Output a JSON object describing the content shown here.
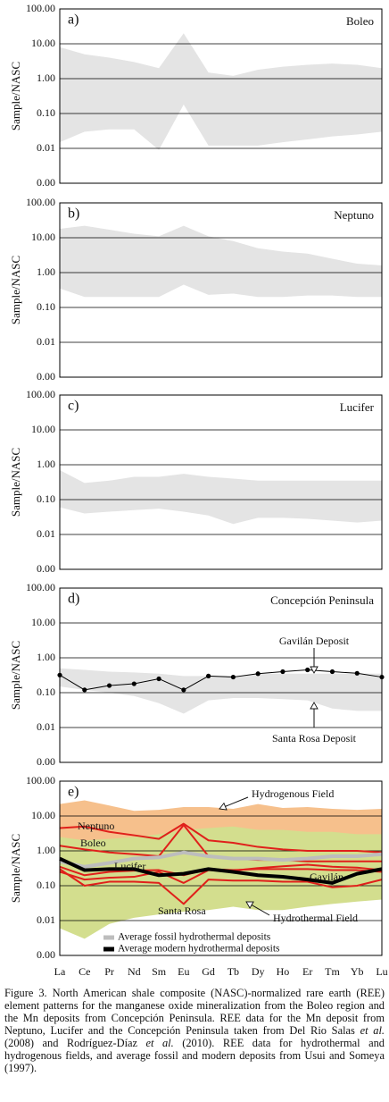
{
  "chart_data": [
    {
      "type": "range",
      "panel": "a)",
      "title": "Boleo",
      "ylabel": "Sample/NASC",
      "log_scale": true,
      "grid": true,
      "ylim": [
        0.001,
        100
      ],
      "yticks": [
        {
          "value": 0.001,
          "label": "0.00"
        },
        {
          "value": 0.01,
          "label": "0.01"
        },
        {
          "value": 0.1,
          "label": "0.10"
        },
        {
          "value": 1,
          "label": "1.00"
        },
        {
          "value": 10,
          "label": "10.00"
        },
        {
          "value": 100,
          "label": "100.00"
        }
      ],
      "bands": [
        {
          "color": "#e4e4e4",
          "upper": [
            8,
            5,
            4,
            3,
            2,
            20,
            1.5,
            1.2,
            1.8,
            2.2,
            2.5,
            2.7,
            2.5,
            2
          ],
          "lower": [
            0.015,
            0.03,
            0.035,
            0.035,
            0.009,
            0.18,
            0.012,
            0.012,
            0.012,
            0.015,
            0.018,
            0.022,
            0.025,
            0.03
          ]
        }
      ],
      "series": []
    },
    {
      "type": "range",
      "panel": "b)",
      "title": "Neptuno",
      "ylabel": "Sample/NASC",
      "log_scale": true,
      "grid": true,
      "ylim": [
        0.001,
        100
      ],
      "yticks": [
        {
          "value": 0.001,
          "label": "0.00"
        },
        {
          "value": 0.01,
          "label": "0.01"
        },
        {
          "value": 0.1,
          "label": "0.10"
        },
        {
          "value": 1,
          "label": "1.00"
        },
        {
          "value": 10,
          "label": "10.00"
        },
        {
          "value": 100,
          "label": "100.00"
        }
      ],
      "bands": [
        {
          "color": "#e4e4e4",
          "upper": [
            18,
            22,
            17,
            13,
            11,
            22,
            11,
            8,
            5,
            4,
            3.5,
            2.5,
            1.8,
            1.6
          ],
          "lower": [
            0.35,
            0.2,
            0.2,
            0.2,
            0.2,
            0.45,
            0.23,
            0.25,
            0.2,
            0.2,
            0.22,
            0.22,
            0.2,
            0.2
          ]
        }
      ],
      "series": []
    },
    {
      "type": "range",
      "panel": "c)",
      "title": "Lucifer",
      "ylabel": "Sample/NASC",
      "log_scale": true,
      "grid": true,
      "ylim": [
        0.001,
        100
      ],
      "yticks": [
        {
          "value": 0.001,
          "label": "0.00"
        },
        {
          "value": 0.01,
          "label": "0.01"
        },
        {
          "value": 0.1,
          "label": "0.10"
        },
        {
          "value": 1,
          "label": "1.00"
        },
        {
          "value": 10,
          "label": "10.00"
        },
        {
          "value": 100,
          "label": "100.00"
        }
      ],
      "bands": [
        {
          "color": "#e4e4e4",
          "upper": [
            0.7,
            0.3,
            0.35,
            0.45,
            0.45,
            0.55,
            0.45,
            0.4,
            0.35,
            0.35,
            0.35,
            0.35,
            0.35,
            0.35
          ],
          "lower": [
            0.06,
            0.04,
            0.045,
            0.05,
            0.055,
            0.045,
            0.035,
            0.02,
            0.03,
            0.03,
            0.028,
            0.025,
            0.022,
            0.025
          ]
        }
      ],
      "series": []
    },
    {
      "type": "range",
      "panel": "d)",
      "title": "Concepción Peninsula",
      "ylabel": "Sample/NASC",
      "log_scale": true,
      "grid": true,
      "ylim": [
        0.001,
        100
      ],
      "yticks": [
        {
          "value": 0.001,
          "label": "0.00"
        },
        {
          "value": 0.01,
          "label": "0.01"
        },
        {
          "value": 0.1,
          "label": "0.10"
        },
        {
          "value": 1,
          "label": "1.00"
        },
        {
          "value": 10,
          "label": "10.00"
        },
        {
          "value": 100,
          "label": "100.00"
        }
      ],
      "bands": [
        {
          "name": "Santa Rosa Deposit",
          "color": "#e4e4e4",
          "upper": [
            0.5,
            0.45,
            0.4,
            0.38,
            0.35,
            0.3,
            0.3,
            0.3,
            0.35,
            0.35,
            0.35,
            0.35,
            0.35,
            0.35
          ],
          "lower": [
            0.15,
            0.12,
            0.1,
            0.08,
            0.05,
            0.025,
            0.06,
            0.07,
            0.07,
            0.065,
            0.06,
            0.035,
            0.03,
            0.03
          ]
        }
      ],
      "series": [
        {
          "name": "Gavilán Deposit",
          "color": "#000000",
          "markers": true,
          "values": [
            0.32,
            0.12,
            0.16,
            0.18,
            0.25,
            0.12,
            0.3,
            0.28,
            0.35,
            0.4,
            0.45,
            0.4,
            0.36,
            0.28
          ]
        }
      ]
    },
    {
      "type": "range",
      "panel": "e)",
      "ylabel": "Sample/NASC",
      "log_scale": true,
      "grid": true,
      "ylim": [
        0.001,
        100
      ],
      "yticks": [
        {
          "value": 0.001,
          "label": "0.00"
        },
        {
          "value": 0.01,
          "label": "0.01"
        },
        {
          "value": 0.1,
          "label": "0.10"
        },
        {
          "value": 1,
          "label": "1.00"
        },
        {
          "value": 10,
          "label": "10.00"
        },
        {
          "value": 100,
          "label": "100.00"
        }
      ],
      "categories": [
        "La",
        "Ce",
        "Pr",
        "Nd",
        "Sm",
        "Eu",
        "Gd",
        "Tb",
        "Dy",
        "Ho",
        "Er",
        "Tm",
        "Yb",
        "Lu"
      ],
      "bands": [
        {
          "name": "Hydrogenous Field",
          "color": "#f6c08c",
          "upper": [
            22,
            28,
            20,
            14,
            15,
            18,
            18,
            16,
            22,
            17,
            18,
            16,
            15,
            16
          ],
          "lower": [
            1,
            0.9,
            0.9,
            0.9,
            0.9,
            1,
            0.9,
            0.9,
            0.9,
            0.9,
            0.9,
            0.9,
            0.9,
            0.9
          ]
        },
        {
          "name": "Hydrothermal Field",
          "color": "#d3de8e",
          "upper": [
            2.5,
            2,
            2.2,
            2.5,
            3,
            4,
            4.5,
            5,
            4,
            4,
            3.5,
            3.5,
            3,
            3
          ],
          "lower": [
            0.006,
            0.003,
            0.008,
            0.012,
            0.015,
            0.018,
            0.02,
            0.025,
            0.02,
            0.02,
            0.025,
            0.03,
            0.035,
            0.04
          ]
        }
      ],
      "series": [
        {
          "name": "Neptuno",
          "color": "#e0201b",
          "values": [
            4.5,
            5,
            3.5,
            2.8,
            2.2,
            6,
            2,
            1.7,
            1.3,
            1.1,
            1,
            1,
            1,
            0.9
          ]
        },
        {
          "name": "Boleo",
          "color": "#e0201b",
          "values": [
            1.4,
            1.1,
            0.9,
            0.8,
            0.7,
            5.5,
            0.7,
            0.6,
            0.55,
            0.55,
            0.5,
            0.5,
            0.5,
            0.5
          ]
        },
        {
          "name": "Lucifer",
          "color": "#e0201b",
          "values": [
            0.35,
            0.2,
            0.25,
            0.27,
            0.28,
            0.2,
            0.3,
            0.28,
            0.3,
            0.3,
            0.3,
            0.28,
            0.28,
            0.25
          ]
        },
        {
          "name": "Santa Rosa",
          "color": "#e0201b",
          "values": [
            0.3,
            0.1,
            0.13,
            0.13,
            0.12,
            0.03,
            0.15,
            0.14,
            0.14,
            0.13,
            0.13,
            0.09,
            0.1,
            0.15
          ]
        },
        {
          "name": "Gavilán",
          "color": "#e0201b",
          "values": [
            0.25,
            0.15,
            0.17,
            0.18,
            0.25,
            0.12,
            0.28,
            0.27,
            0.32,
            0.36,
            0.4,
            0.35,
            0.33,
            0.28
          ]
        },
        {
          "name": "Average fossil hydrothermal deposits",
          "color": "#bdbdbd",
          "legend": true,
          "values": [
            0.5,
            0.35,
            0.45,
            0.6,
            0.65,
            0.9,
            0.7,
            0.6,
            0.6,
            0.55,
            0.6,
            0.7,
            0.7,
            0.8
          ]
        },
        {
          "name": "Average modern hydrothermal deposits",
          "color": "#000000",
          "legend": true,
          "values": [
            0.6,
            0.28,
            0.3,
            0.3,
            0.2,
            0.22,
            0.3,
            0.25,
            0.2,
            0.18,
            0.15,
            0.12,
            0.22,
            0.3
          ]
        }
      ]
    }
  ],
  "caption": [
    {
      "text": "Figure 3. North American shale composite (NASC)-normalized rare earth (REE) element patterns for the manganese oxide mineralization from the Boleo region and the Mn deposits from Concepción Peninsula. REE data for the Mn deposit from Neptuno, Lucifer and the Concepción Peninsula taken from Del Rio Salas "
    },
    {
      "text": "et al.",
      "italic": true
    },
    {
      "text": " (2008) and Rodríguez-Díaz "
    },
    {
      "text": "et al.",
      "italic": true
    },
    {
      "text": " (2010). REE data for hydrothermal and hydrogenous fields, and average fossil and modern deposits from Usui and Someya (1997)."
    }
  ]
}
